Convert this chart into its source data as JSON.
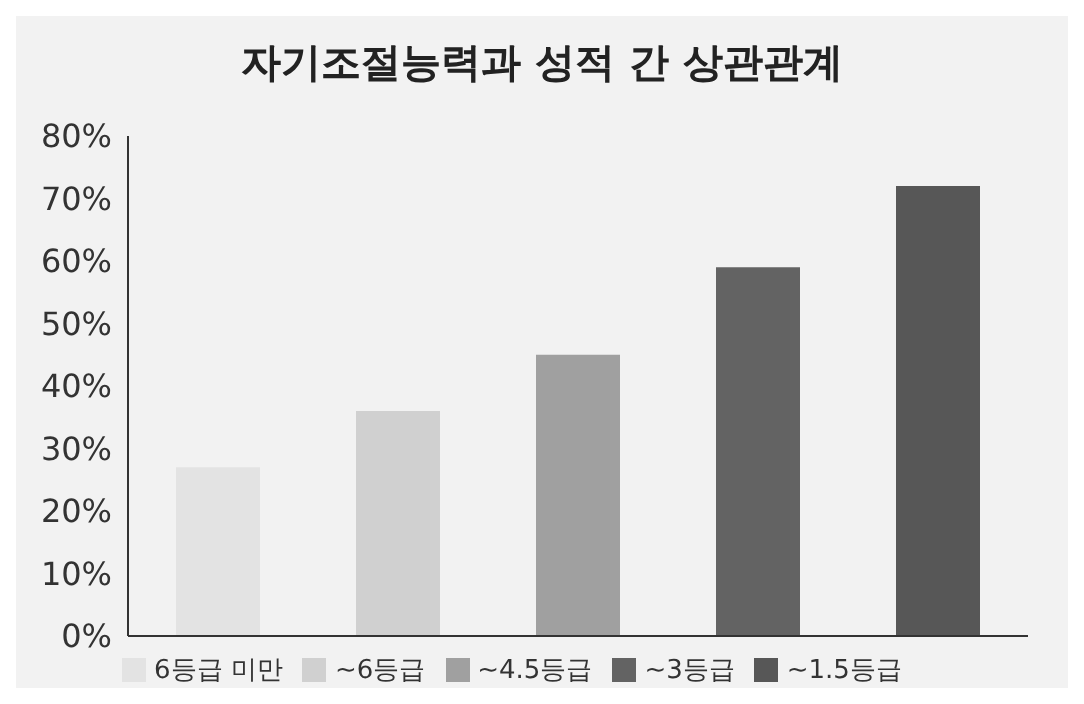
{
  "chart_data": {
    "type": "bar",
    "title": "자기조절능력과 성적 간 상관관계",
    "categories": [
      null,
      null,
      null,
      null,
      null
    ],
    "series": [
      {
        "name": "6등급 미만",
        "color": "#e3e3e3",
        "values": [
          27,
          null,
          null,
          null,
          null
        ]
      },
      {
        "name": "~6등급",
        "color": "#d0d0d0",
        "values": [
          null,
          36,
          null,
          null,
          null
        ]
      },
      {
        "name": "~4.5등급",
        "color": "#a0a0a0",
        "values": [
          null,
          null,
          45,
          null,
          null
        ]
      },
      {
        "name": "~3등급",
        "color": "#636363",
        "values": [
          null,
          null,
          null,
          59,
          null
        ]
      },
      {
        "name": "~1.5등급",
        "color": "#575757",
        "values": [
          null,
          null,
          null,
          null,
          72
        ]
      }
    ],
    "ylim": [
      0,
      80
    ],
    "yticks": [
      {
        "value": 0,
        "label": "0%"
      },
      {
        "value": 10,
        "label": "10%"
      },
      {
        "value": 20,
        "label": "20%"
      },
      {
        "value": 30,
        "label": "30%"
      },
      {
        "value": 40,
        "label": "40%"
      },
      {
        "value": 50,
        "label": "50%"
      },
      {
        "value": 60,
        "label": "60%"
      },
      {
        "value": 70,
        "label": "70%"
      },
      {
        "value": 80,
        "label": "80%"
      }
    ],
    "tick_labels": "y",
    "grid": false,
    "legend": "bottom"
  }
}
